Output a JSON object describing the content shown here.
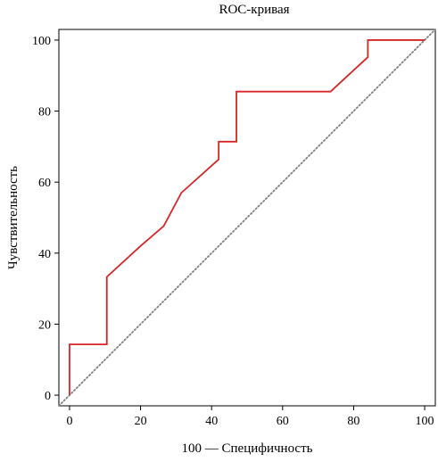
{
  "chart_data": {
    "type": "line",
    "title": "ROC-кривая",
    "xlabel": "100 — Специфичность",
    "ylabel": "Чувствительность",
    "xlim": [
      -3,
      103
    ],
    "ylim": [
      -3,
      103
    ],
    "xticks": [
      0,
      20,
      40,
      60,
      80,
      100
    ],
    "yticks": [
      0,
      20,
      40,
      60,
      80,
      100
    ],
    "grid": false,
    "series": [
      {
        "color": "#d62728",
        "style": "solid",
        "x": [
          0,
          0,
          10.5,
          10.5,
          20,
          26.5,
          31.5,
          42,
          42,
          47,
          47,
          73.5,
          84,
          84,
          100
        ],
        "y": [
          0,
          14.3,
          14.3,
          33.3,
          42,
          47.6,
          57,
          66.4,
          71.4,
          71.4,
          85.5,
          85.5,
          95.2,
          100,
          100
        ]
      },
      {
        "color": "#808080",
        "style": "dotted",
        "x": [
          -3,
          103
        ],
        "y": [
          -3,
          103
        ]
      }
    ]
  }
}
